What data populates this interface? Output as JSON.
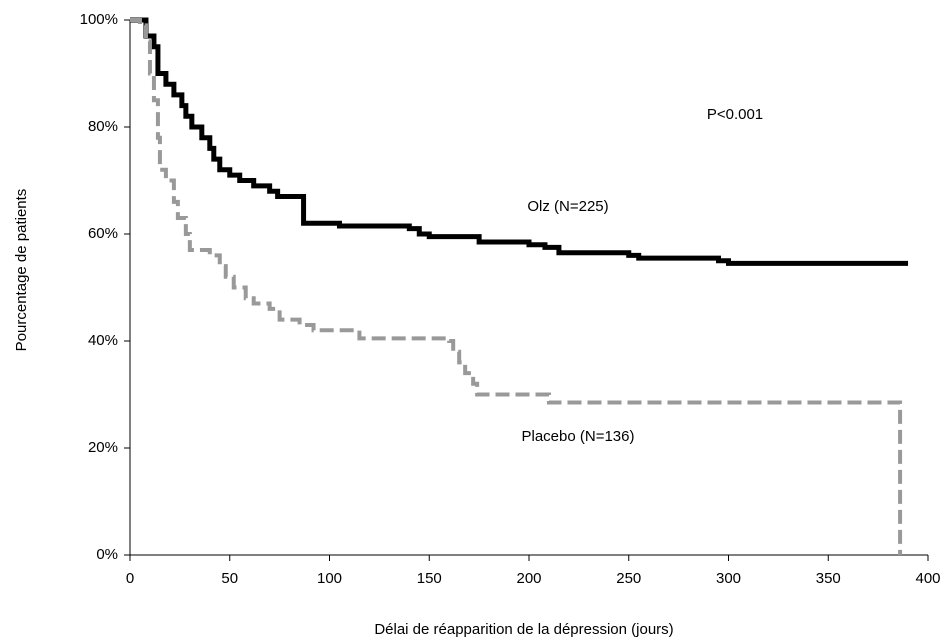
{
  "chart_data": {
    "type": "step-line",
    "xlabel": "Délai de réapparition de la dépression (jours)",
    "ylabel": "Pourcentage de patients",
    "annotations": [
      "P<0.001"
    ],
    "xlim": [
      0,
      400
    ],
    "xticks": [
      0,
      50,
      100,
      150,
      200,
      250,
      300,
      350,
      400
    ],
    "ylim": [
      0,
      100
    ],
    "yticks": [
      {
        "value": 0,
        "label": "0%"
      },
      {
        "value": 20,
        "label": "20%"
      },
      {
        "value": 40,
        "label": "40%"
      },
      {
        "value": 60,
        "label": "60%"
      },
      {
        "value": 80,
        "label": "80%"
      },
      {
        "value": 100,
        "label": "100%"
      }
    ],
    "grid": false,
    "series": [
      {
        "name": "Olz (N=225)",
        "color": "#000000",
        "dashed": false,
        "x": [
          0,
          7,
          8,
          12,
          14,
          18,
          22,
          26,
          28,
          31,
          36,
          40,
          42,
          45,
          50,
          55,
          62,
          70,
          74,
          87,
          100,
          105,
          140,
          145,
          150,
          175,
          200,
          208,
          215,
          250,
          255,
          295,
          300,
          390
        ],
        "values": [
          100,
          100,
          97,
          95,
          90,
          88,
          86,
          84,
          82,
          80,
          78,
          76,
          74,
          72,
          71,
          70,
          69,
          68,
          67,
          62,
          62,
          61.5,
          61,
          60,
          59.5,
          58.5,
          58,
          57.5,
          56.5,
          56,
          55.5,
          55,
          54.5,
          54.5
        ]
      },
      {
        "name": "Placebo (N=136)",
        "color": "#999999",
        "dashed": true,
        "x": [
          0,
          5,
          8,
          10,
          12,
          14,
          15,
          18,
          22,
          24,
          28,
          30,
          40,
          45,
          48,
          52,
          58,
          62,
          70,
          75,
          85,
          92,
          115,
          160,
          162,
          165,
          168,
          172,
          174,
          210,
          386,
          386
        ],
        "values": [
          100,
          99,
          96,
          90,
          85,
          78,
          72,
          70,
          66,
          63,
          60,
          57,
          56,
          54,
          52,
          50,
          48,
          47,
          46,
          44,
          43,
          42,
          40.5,
          40,
          38,
          36,
          34,
          32,
          30,
          28.5,
          28.5,
          0
        ]
      }
    ]
  }
}
